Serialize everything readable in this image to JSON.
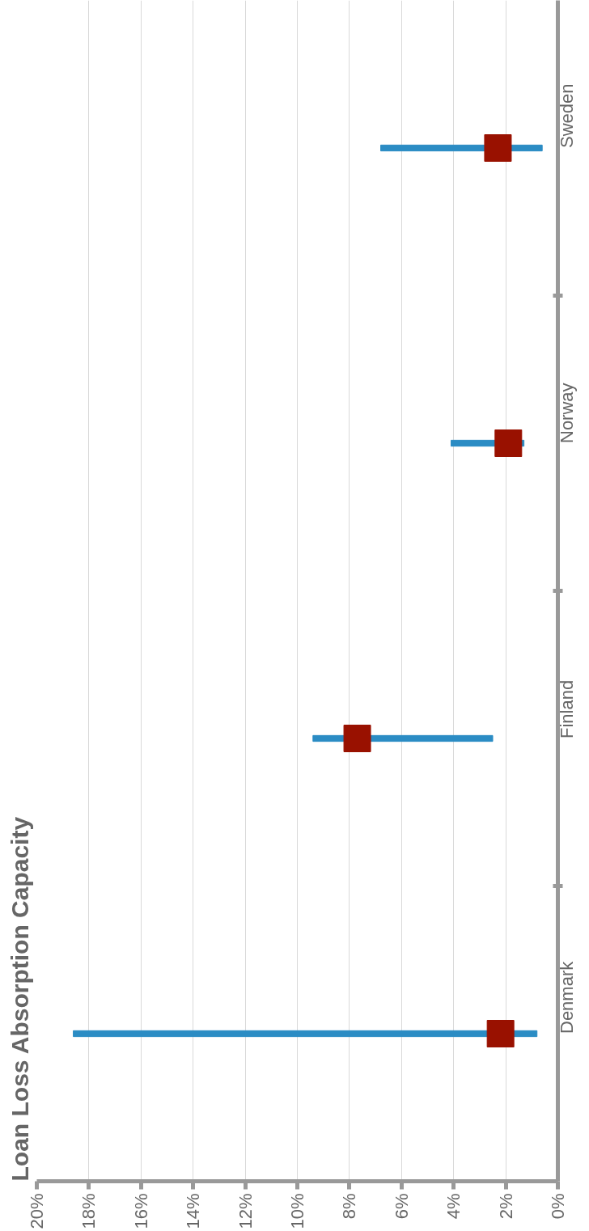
{
  "chart_data": {
    "type": "bar",
    "title": "Loan Loss Absorption Capacity",
    "orientation": "horizontal",
    "categories": [
      "Sweden",
      "Norway",
      "Finland",
      "Denmark"
    ],
    "series": [
      {
        "color": "#2b8cc4",
        "base": [
          0.6,
          1.3,
          2.5,
          0.8
        ],
        "values": [
          6.2,
          2.8,
          6.9,
          17.8
        ]
      },
      {
        "type": "scatter",
        "marker": "square",
        "color": "#991100",
        "values": [
          2.3,
          1.9,
          7.7,
          2.2
        ]
      }
    ],
    "xlim": [
      20,
      0
    ],
    "xticks": [
      {
        "value": 20,
        "label": "20%"
      },
      {
        "value": 18,
        "label": "18%"
      },
      {
        "value": 16,
        "label": "16%"
      },
      {
        "value": 14,
        "label": "14%"
      },
      {
        "value": 12,
        "label": "12%"
      },
      {
        "value": 10,
        "label": "10%"
      },
      {
        "value": 8,
        "label": "8%"
      },
      {
        "value": 6,
        "label": "6%"
      },
      {
        "value": 4,
        "label": "4%"
      },
      {
        "value": 2,
        "label": "2%"
      },
      {
        "value": 0,
        "label": "0%"
      }
    ],
    "grid": "x"
  }
}
